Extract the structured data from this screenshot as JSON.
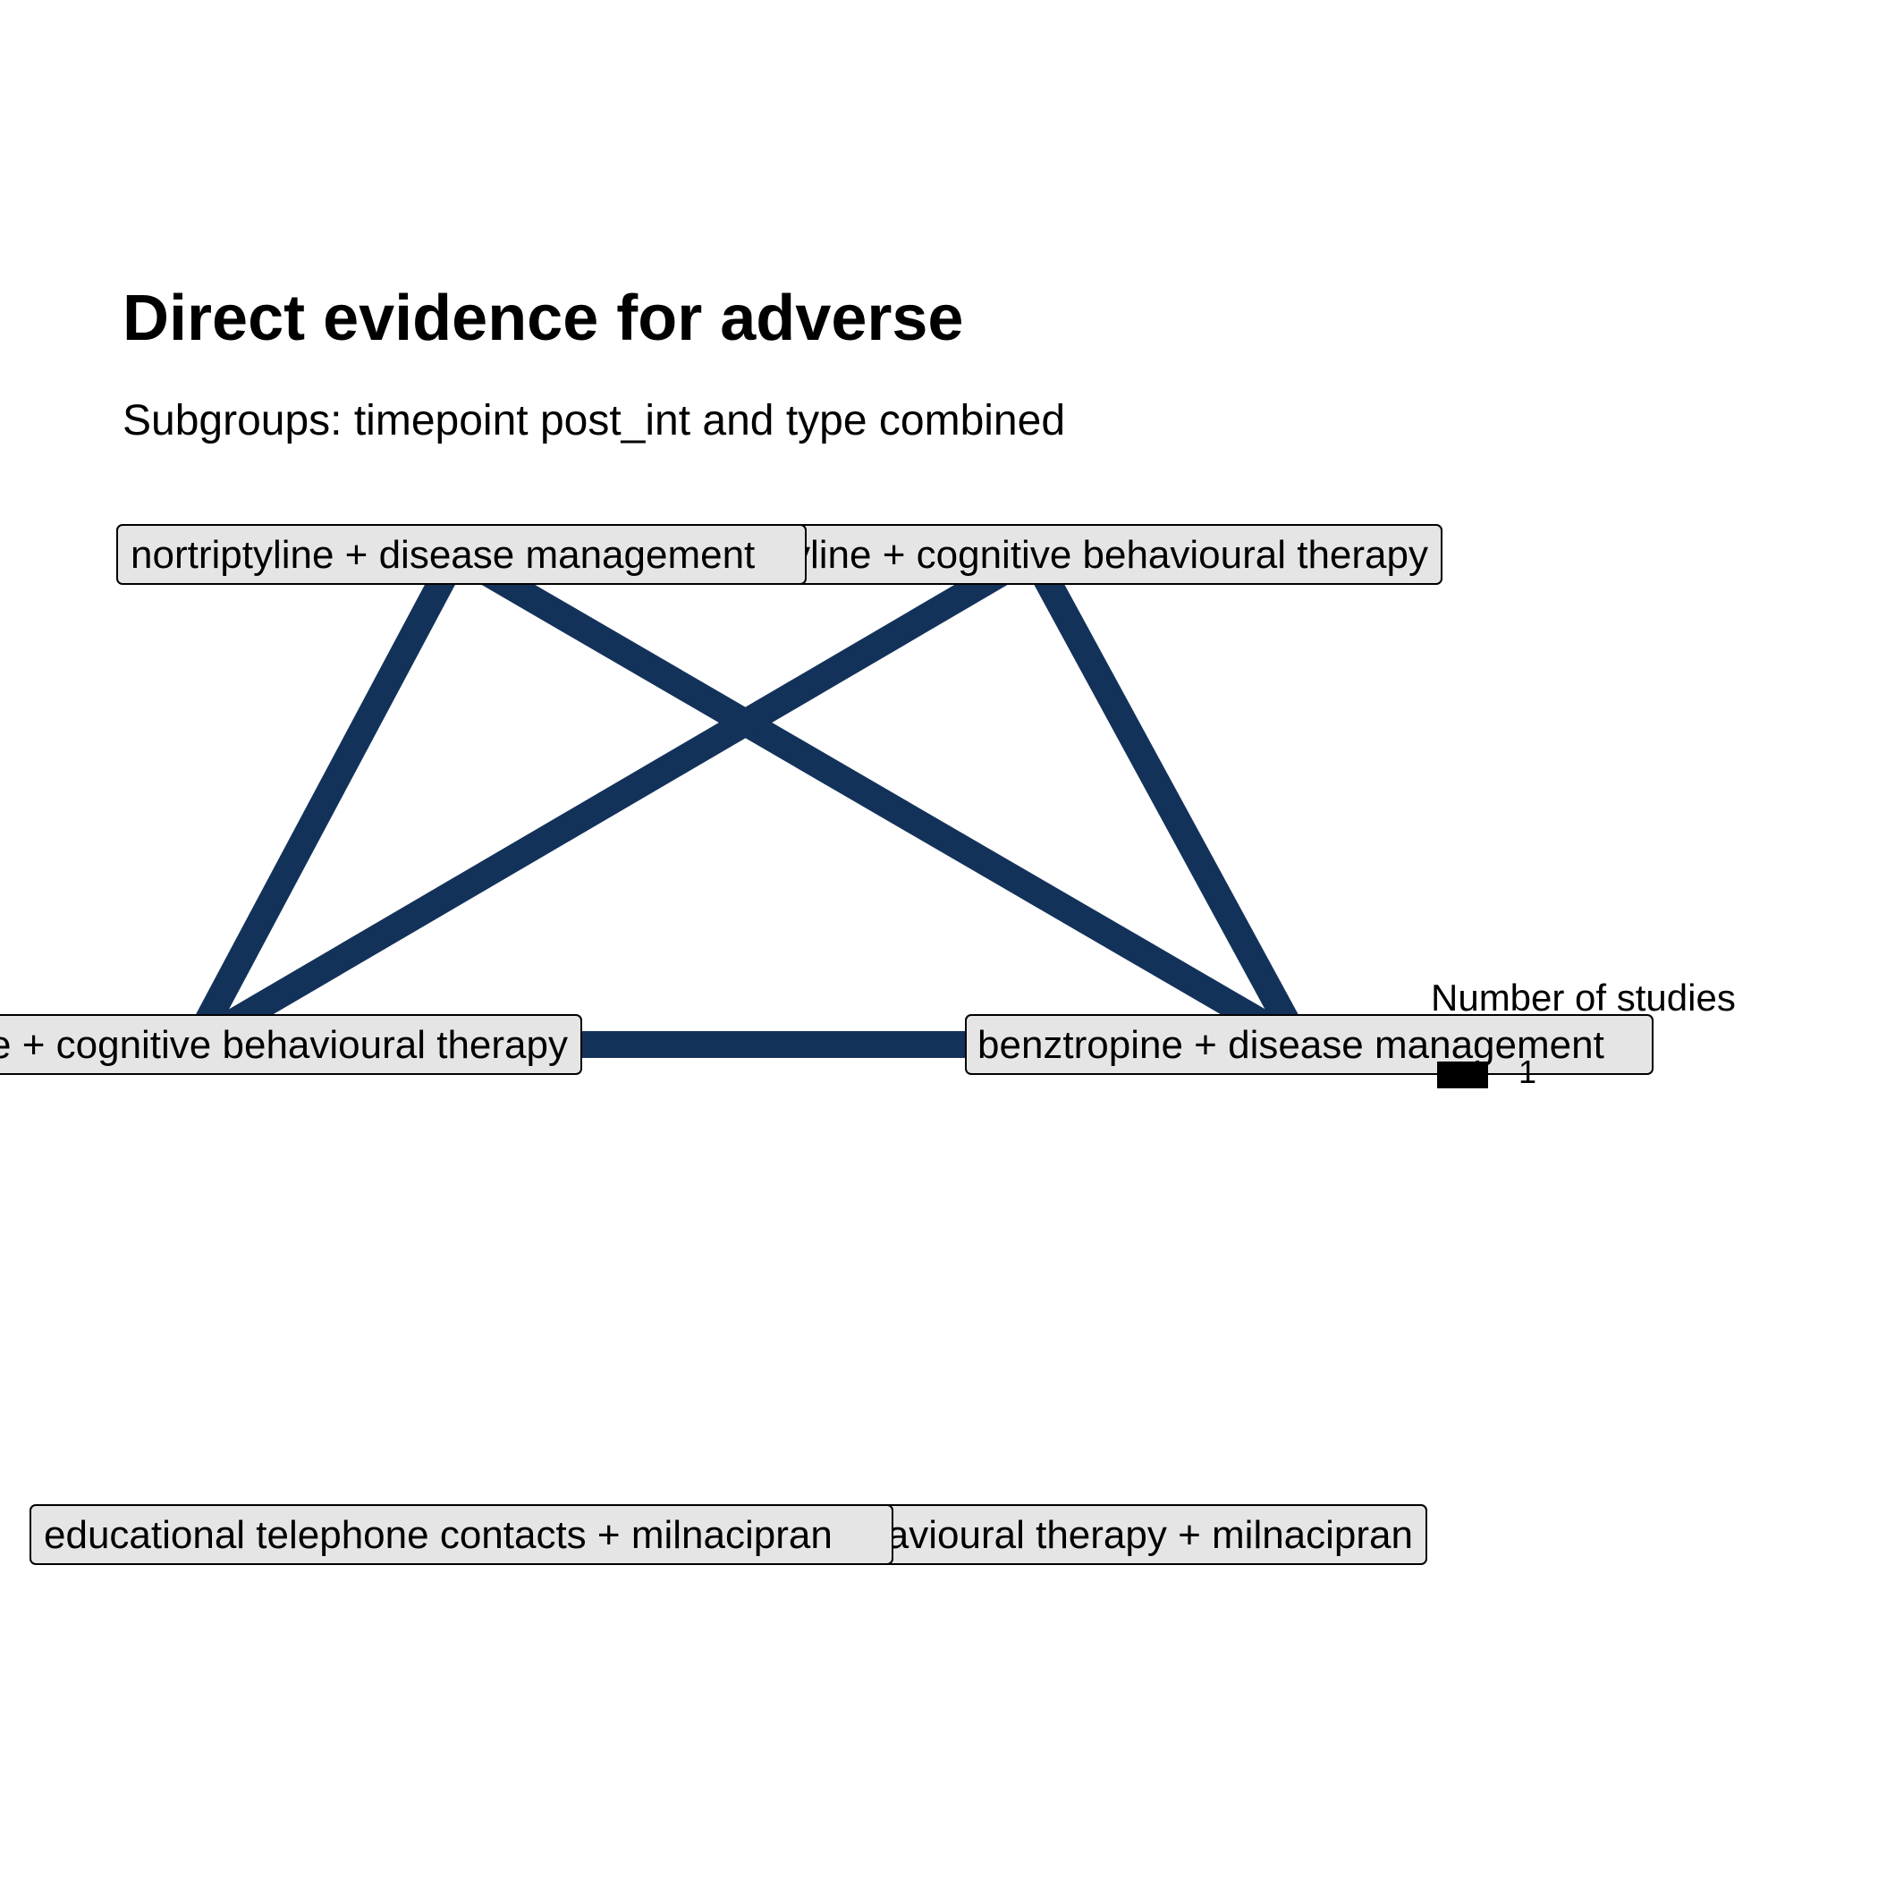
{
  "header": {
    "title": "Direct evidence for adverse",
    "subtitle": "Subgroups: timepoint post_int and type combined"
  },
  "network": {
    "nodes": [
      {
        "id": "n_top_right",
        "label": "nortriptyline + cognitive behavioural therapy"
      },
      {
        "id": "n_top_left",
        "label": "nortriptyline + disease management"
      },
      {
        "id": "n_mid_left",
        "label": "benztropine + cognitive behavioural therapy"
      },
      {
        "id": "n_mid_right",
        "label": "benztropine + disease management"
      },
      {
        "id": "n_bot_right",
        "label": "cognitive behavioural therapy + milnacipran"
      },
      {
        "id": "n_bot_left",
        "label": "educational telephone contacts + milnacipran"
      }
    ],
    "edges": [
      {
        "from": "n_top_left",
        "to": "n_mid_left",
        "studies": 1
      },
      {
        "from": "n_top_left",
        "to": "n_mid_right",
        "studies": 1
      },
      {
        "from": "n_top_right",
        "to": "n_mid_left",
        "studies": 1
      },
      {
        "from": "n_top_right",
        "to": "n_mid_right",
        "studies": 1
      },
      {
        "from": "n_mid_left",
        "to": "n_mid_right",
        "studies": 1
      }
    ]
  },
  "legend": {
    "title": "Number of studies",
    "value": "1"
  },
  "colors": {
    "edge": "#13325a",
    "node_fill": "#e5e5e5"
  }
}
